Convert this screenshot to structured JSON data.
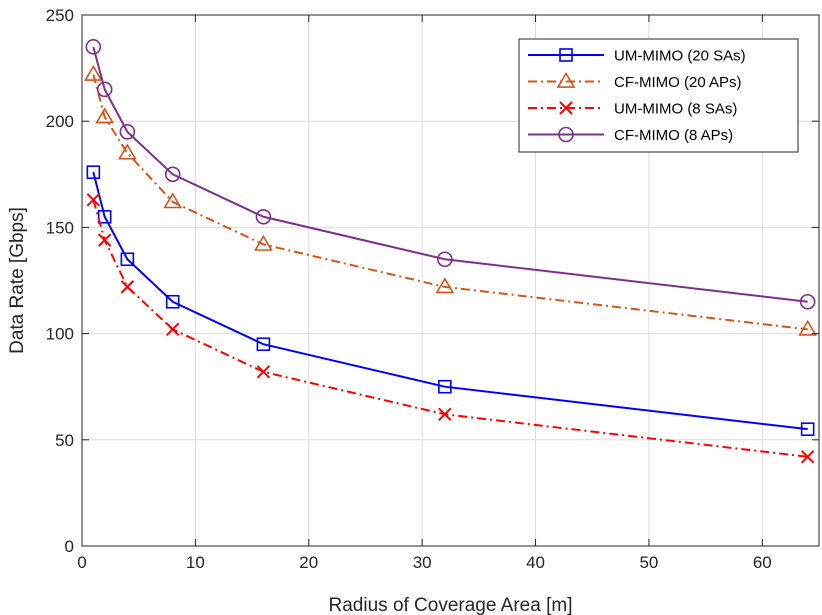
{
  "chart_data": {
    "type": "line",
    "title": "",
    "xlabel": "Radius of Coverage Area [m]",
    "ylabel": "Data Rate [Gbps]",
    "xlim": [
      0,
      65
    ],
    "ylim": [
      0,
      250
    ],
    "xticks": [
      0,
      10,
      20,
      30,
      40,
      50,
      60
    ],
    "yticks": [
      0,
      50,
      100,
      150,
      200,
      250
    ],
    "grid": true,
    "legend_position": "top-right",
    "x": [
      1,
      2,
      4,
      8,
      16,
      32,
      64
    ],
    "series": [
      {
        "name": "UM-MIMO (20 SAs)",
        "values": [
          176,
          155,
          135,
          115,
          95,
          75,
          55
        ],
        "color": "#0000ff",
        "dash": "solid",
        "marker": "square"
      },
      {
        "name": "CF-MIMO (20 APs)",
        "values": [
          222,
          202,
          185,
          162,
          142,
          122,
          102
        ],
        "color": "#d95319",
        "dash": "dashdot",
        "marker": "triangle"
      },
      {
        "name": "UM-MIMO (8 SAs)",
        "values": [
          163,
          144,
          122,
          102,
          82,
          62,
          42
        ],
        "color": "#ff0000",
        "dash": "dashdot",
        "marker": "x"
      },
      {
        "name": "CF-MIMO (8 APs)",
        "values": [
          235,
          215,
          195,
          175,
          155,
          135,
          115
        ],
        "color": "#7e2f8e",
        "dash": "solid",
        "marker": "circle"
      }
    ]
  }
}
